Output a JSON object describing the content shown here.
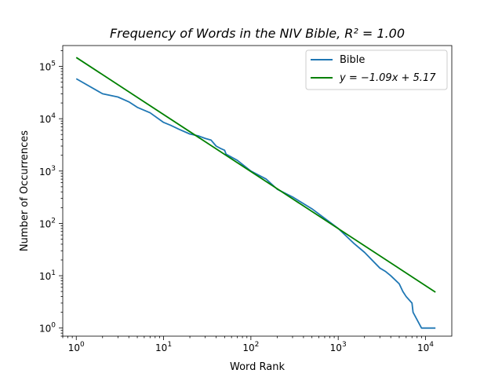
{
  "chart_data": {
    "type": "line",
    "title": "Frequency of Words in the NIV Bible, R² = 1.00",
    "xlabel": "Word Rank",
    "ylabel": "Number of Occurrences",
    "xscale": "log",
    "yscale": "log",
    "xlim": [
      0.7,
      20000
    ],
    "ylim": [
      0.7,
      250000
    ],
    "grid": false,
    "legend_position": "top-right",
    "x_tick_labels": [
      "10^0",
      "10^1",
      "10^2",
      "10^3",
      "10^4"
    ],
    "y_tick_labels": [
      "10^0",
      "10^1",
      "10^2",
      "10^3",
      "10^4",
      "10^5"
    ],
    "series": [
      {
        "name": "Bible",
        "color": "#1f77b4",
        "x": [
          1,
          2,
          3,
          4,
          5,
          7,
          10,
          12,
          15,
          20,
          25,
          30,
          35,
          40,
          45,
          50,
          52,
          70,
          100,
          150,
          200,
          300,
          500,
          1000,
          1500,
          2000,
          3000,
          3500,
          4000,
          5000,
          5500,
          6000,
          7000,
          7200,
          9000,
          13000
        ],
        "y": [
          58000,
          30000,
          26000,
          21000,
          16500,
          13000,
          8500,
          7500,
          6300,
          5100,
          4700,
          4200,
          3900,
          3000,
          2700,
          2500,
          2100,
          1600,
          1000,
          700,
          450,
          320,
          190,
          80,
          42,
          28,
          14,
          12,
          10,
          7,
          5,
          4,
          3,
          2,
          1,
          1
        ]
      },
      {
        "name": "y = −1.09x + 5.17",
        "color": "#008000",
        "fit": {
          "slope": -1.09,
          "intercept": 5.17
        },
        "x": [
          1,
          13000
        ]
      }
    ]
  }
}
